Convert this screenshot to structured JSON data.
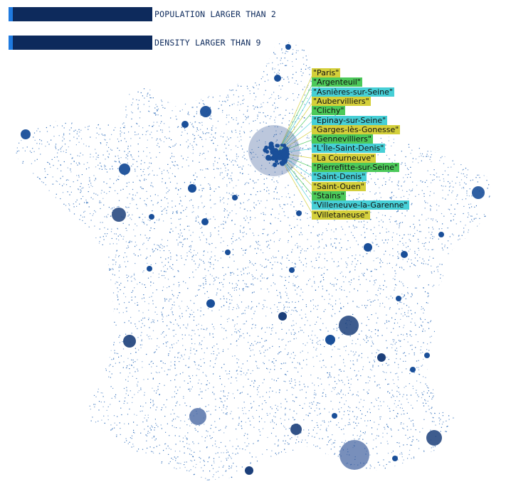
{
  "filters": [
    {
      "label": "POPULATION LARGER THAN 2",
      "value": 2
    },
    {
      "label": "DENSITY LARGER THAN 9",
      "value": 9
    }
  ],
  "cities": [
    {
      "name": "\"Paris\"",
      "color": "#d4cf3a"
    },
    {
      "name": "\"Argenteuil\"",
      "color": "#4cc95a"
    },
    {
      "name": "\"Asnières-sur-Seine\"",
      "color": "#46cfd6"
    },
    {
      "name": "\"Aubervilliers\"",
      "color": "#d4cf3a"
    },
    {
      "name": "\"Clichy\"",
      "color": "#4cc95a"
    },
    {
      "name": "\"Epinay-sur-Seine\"",
      "color": "#46cfd6"
    },
    {
      "name": "\"Garges-lès-Gonesse\"",
      "color": "#d4cf3a"
    },
    {
      "name": "\"Gennevilliers\"",
      "color": "#4cc95a"
    },
    {
      "name": "\"L'Île-Saint-Denis\"",
      "color": "#46cfd6"
    },
    {
      "name": "\"La Courneuve\"",
      "color": "#d4cf3a"
    },
    {
      "name": "\"Pierrefitte-sur-Seine\"",
      "color": "#4cc95a"
    },
    {
      "name": "\"Saint-Denis\"",
      "color": "#46cfd6"
    },
    {
      "name": "\"Saint-Ouen\"",
      "color": "#d4cf3a"
    },
    {
      "name": "\"Stains\"",
      "color": "#4cc95a"
    },
    {
      "name": "\"Villeneuve-la-Garenne\"",
      "color": "#46cfd6"
    },
    {
      "name": "\"Villetaneuse\"",
      "color": "#d4cf3a"
    }
  ],
  "colors": {
    "bar": "#0d2a5c",
    "handle": "#1f7ae0",
    "dot": "#1a5fb4",
    "big_dot": "#1c3f7a"
  }
}
